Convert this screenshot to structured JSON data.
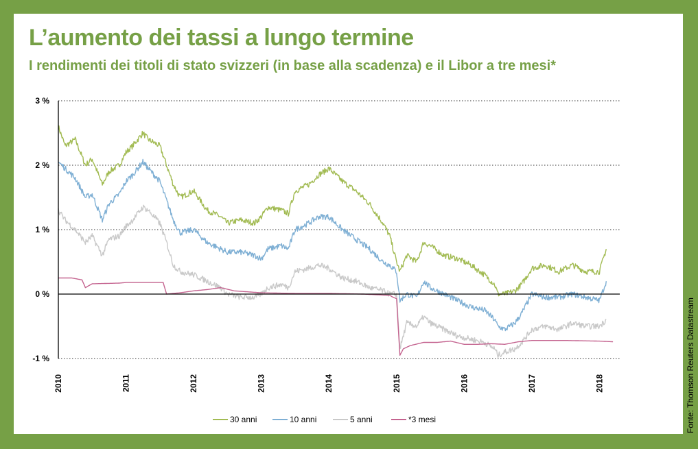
{
  "title": "L’aumento dei tassi a lungo termine",
  "subtitle": "I rendimenti dei titoli di stato svizzeri (in base alla scadenza) e il Libor a tre mesi*",
  "source": "Fonte: Thomson Reuters Datastream",
  "colors": {
    "background": "#76a046",
    "accent": "#76a046",
    "series_30": "#a2bb53",
    "series_10": "#7eafd4",
    "series_5": "#c9c9c9",
    "series_3m": "#c4638f"
  },
  "chart_data": {
    "type": "line",
    "title": "",
    "xlabel": "",
    "ylabel": "",
    "ylim": [
      -1,
      3
    ],
    "xlim": [
      2010.0,
      2018.3
    ],
    "x_ticks": [
      2010,
      2011,
      2012,
      2013,
      2014,
      2015,
      2016,
      2017,
      2018
    ],
    "x_tick_labels": [
      "2010",
      "2011",
      "2012",
      "2013",
      "2014",
      "2015",
      "2016",
      "2017",
      "2018"
    ],
    "y_ticks": [
      3,
      2,
      1,
      0,
      -1
    ],
    "y_tick_labels": [
      "3 %",
      "2 %",
      "1 %",
      "0 %",
      "-1 %"
    ],
    "grid": "horizontal dotted",
    "legend_position": "bottom",
    "series": [
      {
        "name": "30 anni",
        "color": "#a2bb53",
        "x": [
          2010.0,
          2010.1,
          2010.25,
          2010.4,
          2010.5,
          2010.65,
          2010.75,
          2010.9,
          2011.0,
          2011.1,
          2011.25,
          2011.33,
          2011.5,
          2011.6,
          2011.7,
          2011.8,
          2012.0,
          2012.2,
          2012.4,
          2012.5,
          2012.7,
          2012.9,
          2013.0,
          2013.1,
          2013.3,
          2013.4,
          2013.5,
          2013.7,
          2013.85,
          2014.0,
          2014.2,
          2014.4,
          2014.6,
          2014.8,
          2014.9,
          2015.0,
          2015.05,
          2015.15,
          2015.3,
          2015.4,
          2015.5,
          2015.7,
          2015.9,
          2016.1,
          2016.3,
          2016.45,
          2016.5,
          2016.6,
          2016.75,
          2016.85,
          2017.0,
          2017.2,
          2017.4,
          2017.6,
          2017.8,
          2018.0,
          2018.1
        ],
        "values": [
          2.6,
          2.3,
          2.4,
          2.0,
          2.1,
          1.7,
          1.9,
          2.0,
          2.2,
          2.3,
          2.5,
          2.4,
          2.3,
          2.0,
          1.7,
          1.5,
          1.6,
          1.3,
          1.2,
          1.1,
          1.15,
          1.1,
          1.2,
          1.35,
          1.3,
          1.25,
          1.6,
          1.7,
          1.85,
          1.95,
          1.75,
          1.6,
          1.4,
          1.1,
          0.9,
          0.5,
          0.35,
          0.6,
          0.5,
          0.8,
          0.75,
          0.6,
          0.55,
          0.45,
          0.3,
          0.15,
          0.0,
          0.0,
          0.05,
          0.15,
          0.4,
          0.45,
          0.35,
          0.45,
          0.35,
          0.35,
          0.7
        ]
      },
      {
        "name": "10 anni",
        "color": "#7eafd4",
        "x": [
          2010.0,
          2010.1,
          2010.25,
          2010.4,
          2010.5,
          2010.65,
          2010.75,
          2010.9,
          2011.0,
          2011.1,
          2011.25,
          2011.33,
          2011.5,
          2011.6,
          2011.7,
          2011.8,
          2012.0,
          2012.2,
          2012.4,
          2012.5,
          2012.7,
          2012.9,
          2013.0,
          2013.1,
          2013.3,
          2013.4,
          2013.5,
          2013.7,
          2013.85,
          2014.0,
          2014.2,
          2014.4,
          2014.6,
          2014.8,
          2014.9,
          2015.0,
          2015.05,
          2015.15,
          2015.3,
          2015.4,
          2015.5,
          2015.7,
          2015.9,
          2016.1,
          2016.3,
          2016.45,
          2016.5,
          2016.6,
          2016.75,
          2016.85,
          2017.0,
          2017.2,
          2017.4,
          2017.6,
          2017.8,
          2018.0,
          2018.1
        ],
        "values": [
          2.05,
          1.95,
          1.8,
          1.5,
          1.55,
          1.15,
          1.4,
          1.55,
          1.75,
          1.85,
          2.05,
          1.95,
          1.75,
          1.45,
          1.15,
          0.95,
          1.0,
          0.8,
          0.7,
          0.65,
          0.65,
          0.6,
          0.55,
          0.7,
          0.75,
          0.7,
          1.0,
          1.1,
          1.2,
          1.2,
          1.0,
          0.85,
          0.7,
          0.5,
          0.45,
          0.35,
          -0.1,
          0.0,
          -0.05,
          0.2,
          0.1,
          0.0,
          -0.1,
          -0.2,
          -0.25,
          -0.4,
          -0.5,
          -0.55,
          -0.45,
          -0.3,
          0.0,
          -0.05,
          -0.05,
          0.0,
          -0.05,
          -0.1,
          0.2
        ]
      },
      {
        "name": "5 anni",
        "color": "#c9c9c9",
        "x": [
          2010.0,
          2010.1,
          2010.25,
          2010.4,
          2010.5,
          2010.65,
          2010.75,
          2010.9,
          2011.0,
          2011.1,
          2011.25,
          2011.33,
          2011.5,
          2011.6,
          2011.7,
          2011.8,
          2012.0,
          2012.2,
          2012.4,
          2012.5,
          2012.7,
          2012.9,
          2013.0,
          2013.1,
          2013.3,
          2013.4,
          2013.5,
          2013.7,
          2013.85,
          2014.0,
          2014.2,
          2014.4,
          2014.6,
          2014.8,
          2014.9,
          2015.0,
          2015.05,
          2015.15,
          2015.3,
          2015.4,
          2015.5,
          2015.7,
          2015.9,
          2016.1,
          2016.3,
          2016.45,
          2016.5,
          2016.6,
          2016.75,
          2016.85,
          2017.0,
          2017.2,
          2017.4,
          2017.6,
          2017.8,
          2018.0,
          2018.1
        ],
        "values": [
          1.3,
          1.15,
          1.0,
          0.8,
          0.9,
          0.6,
          0.85,
          0.9,
          1.05,
          1.15,
          1.35,
          1.3,
          1.1,
          0.8,
          0.45,
          0.35,
          0.3,
          0.2,
          0.1,
          0.0,
          -0.05,
          -0.05,
          0.0,
          0.1,
          0.15,
          0.1,
          0.35,
          0.4,
          0.45,
          0.4,
          0.25,
          0.2,
          0.1,
          0.05,
          0.0,
          0.0,
          -0.85,
          -0.45,
          -0.5,
          -0.35,
          -0.45,
          -0.55,
          -0.65,
          -0.7,
          -0.75,
          -0.85,
          -0.95,
          -0.9,
          -0.85,
          -0.75,
          -0.55,
          -0.5,
          -0.55,
          -0.45,
          -0.5,
          -0.5,
          -0.4
        ]
      },
      {
        "name": "*3 mesi",
        "color": "#c4638f",
        "x": [
          2010.0,
          2010.2,
          2010.35,
          2010.4,
          2010.5,
          2010.9,
          2011.0,
          2011.3,
          2011.55,
          2011.6,
          2011.8,
          2012.0,
          2012.2,
          2012.4,
          2012.6,
          2013.0,
          2013.5,
          2014.0,
          2014.5,
          2014.9,
          2014.95,
          2015.0,
          2015.05,
          2015.1,
          2015.2,
          2015.4,
          2015.6,
          2015.8,
          2016.0,
          2016.2,
          2016.4,
          2016.6,
          2016.8,
          2017.0,
          2017.5,
          2018.0,
          2018.2
        ],
        "values": [
          0.25,
          0.25,
          0.22,
          0.1,
          0.16,
          0.17,
          0.18,
          0.18,
          0.18,
          0.0,
          0.02,
          0.05,
          0.07,
          0.1,
          0.05,
          0.02,
          0.01,
          0.01,
          0.0,
          -0.02,
          -0.05,
          -0.07,
          -0.95,
          -0.85,
          -0.8,
          -0.75,
          -0.75,
          -0.73,
          -0.78,
          -0.78,
          -0.77,
          -0.78,
          -0.74,
          -0.72,
          -0.72,
          -0.73,
          -0.74
        ]
      }
    ]
  }
}
